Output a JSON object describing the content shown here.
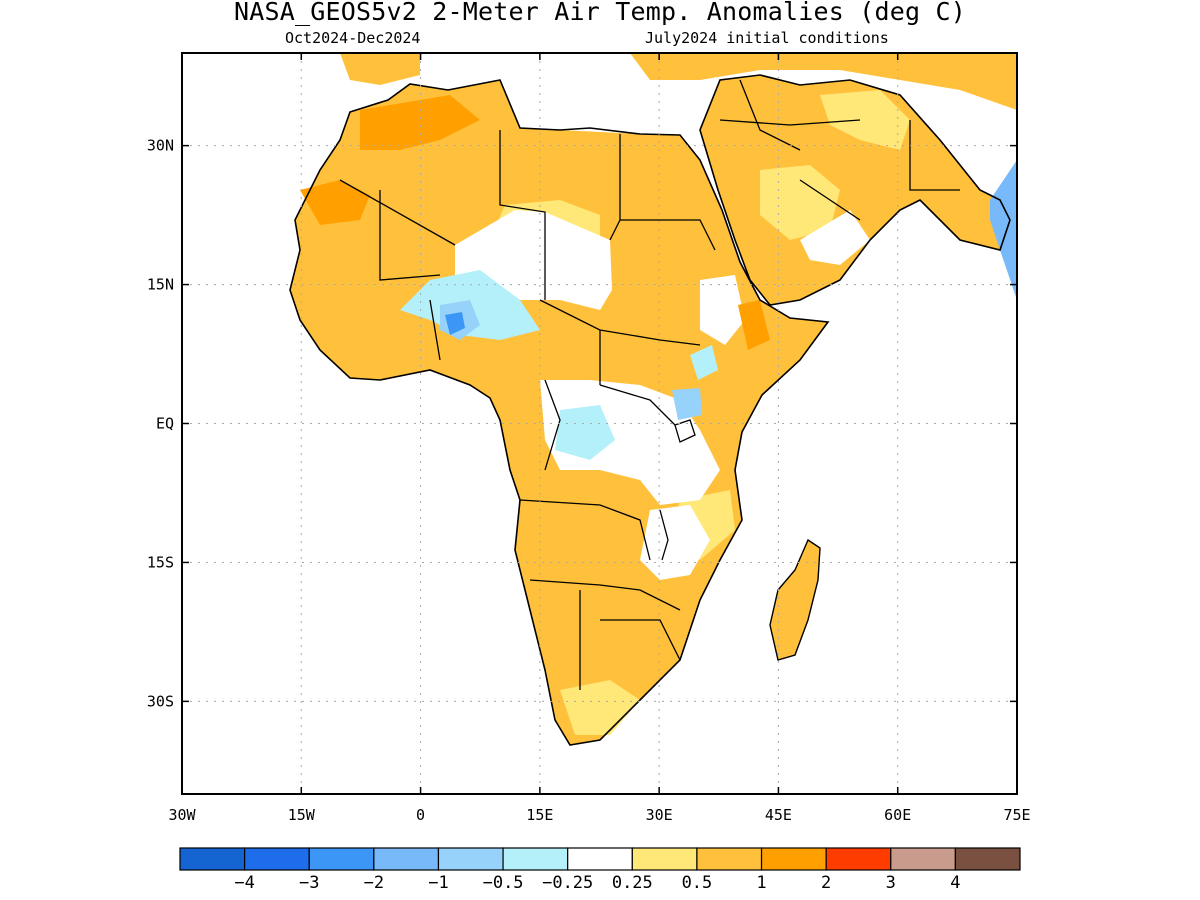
{
  "title": "NASA_GEOS5v2 2-Meter Air Temp. Anomalies (deg C)",
  "period": "Oct2024-Dec2024",
  "initial_conditions": "July2024 initial conditions",
  "map": {
    "lon_range": [
      -30,
      75
    ],
    "lat_range": [
      -40,
      40
    ],
    "x_ticks": [
      {
        "lon": -30,
        "label": "30W"
      },
      {
        "lon": -15,
        "label": "15W"
      },
      {
        "lon": 0,
        "label": "0"
      },
      {
        "lon": 15,
        "label": "15E"
      },
      {
        "lon": 30,
        "label": "30E"
      },
      {
        "lon": 45,
        "label": "45E"
      },
      {
        "lon": 60,
        "label": "60E"
      },
      {
        "lon": 75,
        "label": "75E"
      }
    ],
    "y_ticks": [
      {
        "lat": 30,
        "label": "30N"
      },
      {
        "lat": 15,
        "label": "15N"
      },
      {
        "lat": 0,
        "label": "EQ"
      },
      {
        "lat": -15,
        "label": "15S"
      },
      {
        "lat": -30,
        "label": "30S"
      }
    ],
    "grid": "dotted"
  },
  "colorbar": {
    "colors": [
      "#1464d2",
      "#1e6eeb",
      "#3c96f5",
      "#78b9fa",
      "#96d2fa",
      "#b4f0fa",
      "#ffffff",
      "#ffe878",
      "#ffc03c",
      "#ffa000",
      "#ff3c00",
      "#c89b8c",
      "#7a5040"
    ],
    "labels": [
      "-4",
      "-3",
      "-2",
      "-1",
      "-0.5",
      "-0.25",
      "0.25",
      "0.5",
      "1",
      "2",
      "3",
      "4"
    ]
  }
}
